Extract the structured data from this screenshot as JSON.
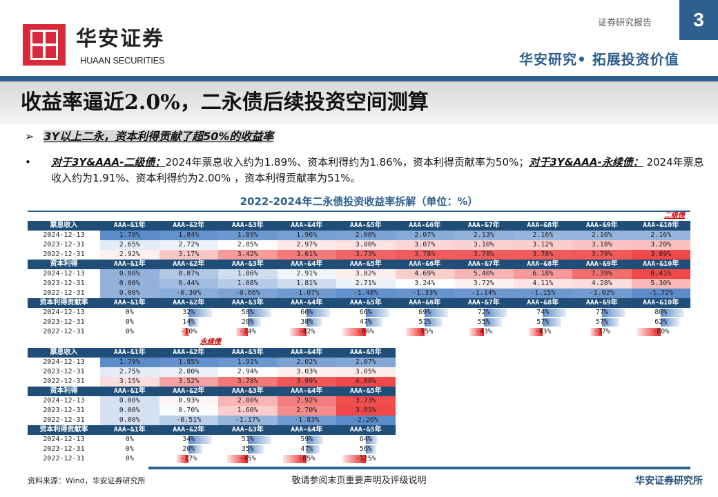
{
  "header": {
    "brand_cn": "华安证券",
    "brand_en": "HUAAN SECURITIES",
    "report_type": "证券研究报告",
    "page_number": "3",
    "slogan": "华安研究• 拓展投资价值"
  },
  "title": "收益率逼近2.0%，二永债后续投资空间测算",
  "subtitle": "3Y以上二永，资本利得贡献了超50%的收益率",
  "bullet": {
    "em1": "对于3Y&AAA-二级债：",
    "t1": "2024年票息收入约为1.89%、资本利得约为1.86%，资本利得贡献率为50%；",
    "em2": "对于3Y&AAA-永续债：",
    "t2": " 2024年票息收入约为1.91%、资本利得约为2.00% ，资本利得贡献率为51%。"
  },
  "chart_title": "2022-2024年二永债投资收益率拆解（单位：%）",
  "colors": {
    "brand_blue": "#2e5f8f",
    "header_navy": "#1f4e79",
    "heat_low": "#5b8bc9",
    "heat_mid": "#ffffff",
    "heat_high": "#f04848"
  },
  "chart_data": [
    {
      "type": "table",
      "title": "二级债",
      "columns": [
        "AAA-&1年",
        "AAA-&2年",
        "AAA-&3年",
        "AAA-&4年",
        "AAA-&5年",
        "AAA-&6年",
        "AAA-&7年",
        "AAA-&8年",
        "AAA-&9年",
        "AAA-&10年"
      ],
      "blocks": [
        {
          "label": "票息收入",
          "rows": [
            {
              "date": "2024-12-13",
              "values": [
                "1.78%",
                "1.84%",
                "1.89%",
                "1.96%",
                "2.00%",
                "2.07%",
                "2.13%",
                "2.16%",
                "2.16%",
                "2.16%"
              ]
            },
            {
              "date": "2023-12-31",
              "values": [
                "2.65%",
                "2.72%",
                "2.85%",
                "2.97%",
                "3.00%",
                "3.07%",
                "3.10%",
                "3.12%",
                "3.18%",
                "3.20%"
              ]
            },
            {
              "date": "2022-12-31",
              "values": [
                "2.92%",
                "3.17%",
                "3.42%",
                "3.61%",
                "3.73%",
                "3.78%",
                "3.78%",
                "3.78%",
                "3.79%",
                "3.89%"
              ]
            }
          ]
        },
        {
          "label": "资本利得",
          "rows": [
            {
              "date": "2024-12-13",
              "values": [
                "0.00%",
                "0.87%",
                "1.86%",
                "2.91%",
                "3.82%",
                "4.69%",
                "5.40%",
                "6.18%",
                "7.39%",
                "8.41%"
              ]
            },
            {
              "date": "2023-12-31",
              "values": [
                "0.00%",
                "0.44%",
                "1.08%",
                "1.81%",
                "2.71%",
                "3.24%",
                "3.72%",
                "4.11%",
                "4.28%",
                "5.30%"
              ]
            },
            {
              "date": "2022-12-31",
              "values": [
                "0.00%",
                "-0.30%",
                "-0.66%",
                "-1.07%",
                "-1.48%",
                "-1.33%",
                "-1.14%",
                "-1.15%",
                "-1.02%",
                "-1.72%"
              ]
            }
          ]
        },
        {
          "label": "资本利得贡献率",
          "bars": true,
          "rows": [
            {
              "date": "2024-12-13",
              "values": [
                "0%",
                "32%",
                "50%",
                "60%",
                "66%",
                "69%",
                "72%",
                "74%",
                "77%",
                "80%"
              ]
            },
            {
              "date": "2023-12-31",
              "values": [
                "0%",
                "14%",
                "28%",
                "38%",
                "47%",
                "51%",
                "55%",
                "57%",
                "57%",
                "62%"
              ]
            },
            {
              "date": "2022-12-31",
              "values": [
                "0%",
                "-10%",
                "-24%",
                "-42%",
                "-66%",
                "-55%",
                "-43%",
                "-43%",
                "-37%",
                "-80%"
              ]
            }
          ]
        }
      ]
    },
    {
      "type": "table",
      "title": "永续债",
      "columns": [
        "AAA-&1年",
        "AAA-&2年",
        "AAA-&3年",
        "AAA-&4年",
        "AAA-&5年"
      ],
      "blocks": [
        {
          "label": "票息收入",
          "rows": [
            {
              "date": "2024-12-13",
              "values": [
                "1.79%",
                "1.85%",
                "1.91%",
                "2.02%",
                "2.07%"
              ]
            },
            {
              "date": "2023-12-31",
              "values": [
                "2.75%",
                "2.80%",
                "2.94%",
                "3.03%",
                "3.05%"
              ]
            },
            {
              "date": "2022-12-31",
              "values": [
                "3.15%",
                "3.52%",
                "3.78%",
                "3.99%",
                "4.08%"
              ]
            }
          ]
        },
        {
          "label": "资本利得",
          "rows": [
            {
              "date": "2024-12-13",
              "values": [
                "0.00%",
                "0.93%",
                "2.00%",
                "2.92%",
                "3.73%"
              ]
            },
            {
              "date": "2023-12-31",
              "values": [
                "0.00%",
                "0.70%",
                "1.60%",
                "2.70%",
                "3.81%"
              ]
            },
            {
              "date": "2022-12-31",
              "values": [
                "0.00%",
                "-0.51%",
                "-1.17%",
                "-1.83%",
                "-2.26%"
              ]
            }
          ]
        },
        {
          "label": "资本利得贡献率",
          "bars": true,
          "rows": [
            {
              "date": "2024-12-13",
              "values": [
                "0%",
                "34%",
                "51%",
                "59%",
                "64%"
              ]
            },
            {
              "date": "2023-12-31",
              "values": [
                "0%",
                "20%",
                "35%",
                "47%",
                "56%"
              ]
            },
            {
              "date": "2022-12-31",
              "values": [
                "0%",
                "-17%",
                "-45%",
                "-85%",
                "-125%"
              ]
            }
          ]
        }
      ]
    }
  ],
  "footer": {
    "source": "资料来源：Wind，华安证券研究所",
    "notice": "敬请参阅末页重要声明及评级说明",
    "firm": "华安证券研究所"
  }
}
